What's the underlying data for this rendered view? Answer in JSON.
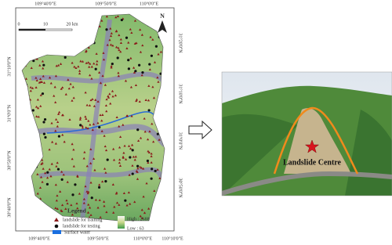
{
  "map": {
    "top_labels": [
      "109°40'0\"E",
      "109°50'0\"E",
      "110°0'0\"E"
    ],
    "bottom_labels": [
      "109°40'0\"E",
      "109°50'0\"E",
      "110°0'0\"E",
      "110°10'0\"E"
    ],
    "left_labels": [
      "31°10'0\"N",
      "31°0'0\"N",
      "30°50'0\"N",
      "30°40'0\"N"
    ],
    "right_labels": [
      "31°20'0\"N",
      "31°10'0\"N",
      "31°0'0\"N",
      "30°50'0\"N"
    ],
    "north": "N",
    "scale_labels": [
      "0",
      "10",
      "20 km"
    ],
    "legend": {
      "title": "Legend",
      "training": "landslide for training",
      "testing": "landslide for testing",
      "high": "High : 2688",
      "low": "Low : 63",
      "water": "Surface water"
    }
  },
  "photo": {
    "label": "Landslide Centre"
  }
}
